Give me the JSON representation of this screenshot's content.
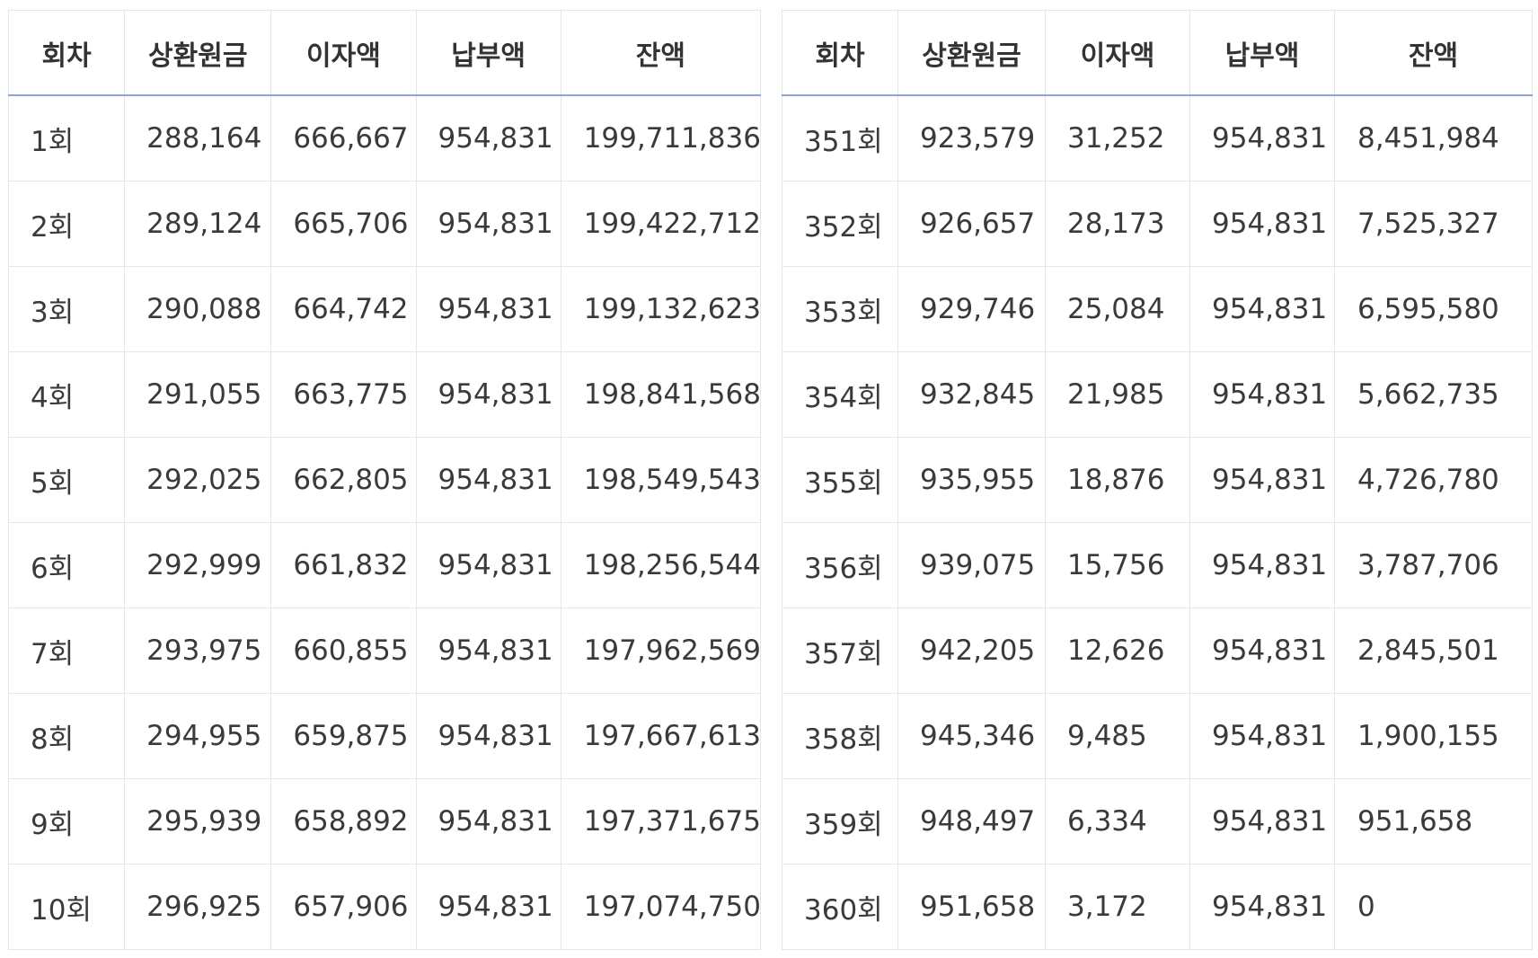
{
  "headers": [
    "회차",
    "상환원금",
    "이자액",
    "납부액",
    "잔액"
  ],
  "left_rows": [
    [
      "1회",
      "288,164",
      "666,667",
      "954,831",
      "199,711,836"
    ],
    [
      "2회",
      "289,124",
      "665,706",
      "954,831",
      "199,422,712"
    ],
    [
      "3회",
      "290,088",
      "664,742",
      "954,831",
      "199,132,623"
    ],
    [
      "4회",
      "291,055",
      "663,775",
      "954,831",
      "198,841,568"
    ],
    [
      "5회",
      "292,025",
      "662,805",
      "954,831",
      "198,549,543"
    ],
    [
      "6회",
      "292,999",
      "661,832",
      "954,831",
      "198,256,544"
    ],
    [
      "7회",
      "293,975",
      "660,855",
      "954,831",
      "197,962,569"
    ],
    [
      "8회",
      "294,955",
      "659,875",
      "954,831",
      "197,667,613"
    ],
    [
      "9회",
      "295,939",
      "658,892",
      "954,831",
      "197,371,675"
    ],
    [
      "10회",
      "296,925",
      "657,906",
      "954,831",
      "197,074,750"
    ]
  ],
  "right_rows": [
    [
      "351회",
      "923,579",
      "31,252",
      "954,831",
      "8,451,984"
    ],
    [
      "352회",
      "926,657",
      "28,173",
      "954,831",
      "7,525,327"
    ],
    [
      "353회",
      "929,746",
      "25,084",
      "954,831",
      "6,595,580"
    ],
    [
      "354회",
      "932,845",
      "21,985",
      "954,831",
      "5,662,735"
    ],
    [
      "355회",
      "935,955",
      "18,876",
      "954,831",
      "4,726,780"
    ],
    [
      "356회",
      "939,075",
      "15,756",
      "954,831",
      "3,787,706"
    ],
    [
      "357회",
      "942,205",
      "12,626",
      "954,831",
      "2,845,501"
    ],
    [
      "358회",
      "945,346",
      "9,485",
      "954,831",
      "1,900,155"
    ],
    [
      "359회",
      "948,497",
      "6,334",
      "954,831",
      "951,658"
    ],
    [
      "360회",
      "951,658",
      "3,172",
      "954,831",
      "0"
    ]
  ],
  "colors": {
    "header_rule": "#8ea6d6",
    "grid_line": "#e3e6ea",
    "text": "#333333"
  }
}
